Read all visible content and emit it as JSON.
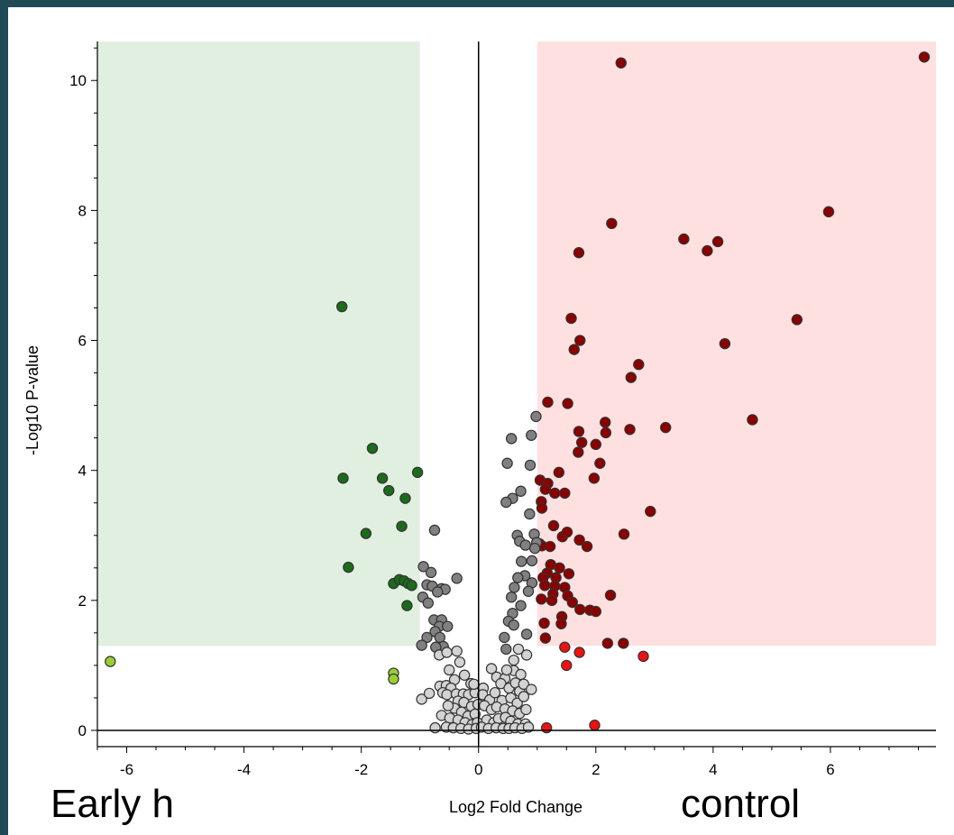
{
  "chart_data": {
    "type": "scatter",
    "title": "",
    "xlabel": "Log2 Fold Change",
    "ylabel": "-Log10 P-value",
    "xlim": [
      -6.5,
      7.8
    ],
    "ylim": [
      -0.25,
      10.6
    ],
    "x_ticks": [
      -6,
      -4,
      -2,
      0,
      2,
      4,
      6
    ],
    "y_ticks": [
      0,
      2,
      4,
      6,
      8,
      10
    ],
    "grid": false,
    "regions": [
      {
        "name": "down",
        "x": [
          -6.5,
          -1
        ],
        "y": [
          1.3,
          10.6
        ],
        "color": "#e1efe1"
      },
      {
        "name": "up",
        "x": [
          1,
          7.8
        ],
        "y": [
          1.3,
          10.6
        ],
        "color": "#ffe0e0"
      }
    ],
    "group_labels": {
      "left": "Early h",
      "right": "control"
    },
    "series": [
      {
        "color": "#1b6b1b",
        "points": [
          [
            -2.33,
            6.52
          ],
          [
            -1.81,
            4.34
          ],
          [
            -2.31,
            3.88
          ],
          [
            -1.64,
            3.88
          ],
          [
            -1.53,
            3.69
          ],
          [
            -1.25,
            3.57
          ],
          [
            -1.04,
            3.97
          ],
          [
            -1.31,
            3.14
          ],
          [
            -1.92,
            3.03
          ],
          [
            -2.22,
            2.51
          ],
          [
            -1.45,
            2.26
          ],
          [
            -1.35,
            2.32
          ],
          [
            -1.27,
            2.3
          ],
          [
            -1.2,
            2.26
          ],
          [
            -1.14,
            2.23
          ],
          [
            -1.22,
            1.92
          ]
        ]
      },
      {
        "color": "#9acd32",
        "points": [
          [
            -6.28,
            1.06
          ],
          [
            -1.45,
            0.88
          ],
          [
            -1.45,
            0.79
          ]
        ]
      },
      {
        "color": "#8b0000",
        "points": [
          [
            7.6,
            10.36
          ],
          [
            2.43,
            10.27
          ],
          [
            5.97,
            7.98
          ],
          [
            2.27,
            7.8
          ],
          [
            3.5,
            7.56
          ],
          [
            4.08,
            7.52
          ],
          [
            3.9,
            7.38
          ],
          [
            1.71,
            7.35
          ],
          [
            5.43,
            6.32
          ],
          [
            1.58,
            6.34
          ],
          [
            4.2,
            5.95
          ],
          [
            1.73,
            6.0
          ],
          [
            1.63,
            5.86
          ],
          [
            2.73,
            5.63
          ],
          [
            2.6,
            5.43
          ],
          [
            1.18,
            5.05
          ],
          [
            1.52,
            5.03
          ],
          [
            4.67,
            4.78
          ],
          [
            2.16,
            4.74
          ],
          [
            2.58,
            4.63
          ],
          [
            3.19,
            4.66
          ],
          [
            2.17,
            4.58
          ],
          [
            1.71,
            4.6
          ],
          [
            1.76,
            4.43
          ],
          [
            2.0,
            4.4
          ],
          [
            1.7,
            4.28
          ],
          [
            2.07,
            4.11
          ],
          [
            1.37,
            3.97
          ],
          [
            1.97,
            3.88
          ],
          [
            1.05,
            3.85
          ],
          [
            1.18,
            3.8
          ],
          [
            1.14,
            3.71
          ],
          [
            1.3,
            3.65
          ],
          [
            1.47,
            3.65
          ],
          [
            1.07,
            3.52
          ],
          [
            1.08,
            3.42
          ],
          [
            2.93,
            3.37
          ],
          [
            1.28,
            3.15
          ],
          [
            1.43,
            2.98
          ],
          [
            1.51,
            3.05
          ],
          [
            2.48,
            3.02
          ],
          [
            1.72,
            2.93
          ],
          [
            1.04,
            2.87
          ],
          [
            1.08,
            2.84
          ],
          [
            1.22,
            2.83
          ],
          [
            1.85,
            2.83
          ],
          [
            1.23,
            2.55
          ],
          [
            1.38,
            2.5
          ],
          [
            1.17,
            2.42
          ],
          [
            1.1,
            2.35
          ],
          [
            1.54,
            2.41
          ],
          [
            1.32,
            2.35
          ],
          [
            1.13,
            2.23
          ],
          [
            1.3,
            2.22
          ],
          [
            1.47,
            2.2
          ],
          [
            1.27,
            2.1
          ],
          [
            1.52,
            2.07
          ],
          [
            1.07,
            2.02
          ],
          [
            1.25,
            2.0
          ],
          [
            2.25,
            2.08
          ],
          [
            1.6,
            1.97
          ],
          [
            1.73,
            1.86
          ],
          [
            1.9,
            1.85
          ],
          [
            2.0,
            1.83
          ],
          [
            1.42,
            1.75
          ],
          [
            1.12,
            1.65
          ],
          [
            1.41,
            1.64
          ],
          [
            2.2,
            1.34
          ],
          [
            2.47,
            1.34
          ],
          [
            1.14,
            1.42
          ]
        ]
      },
      {
        "color": "#ee1111",
        "points": [
          [
            1.47,
            1.28
          ],
          [
            1.72,
            1.2
          ],
          [
            2.81,
            1.14
          ],
          [
            1.5,
            1.0
          ],
          [
            1.16,
            0.04
          ],
          [
            1.98,
            0.08
          ]
        ]
      },
      {
        "color": "#808080",
        "points": [
          [
            0.98,
            4.83
          ],
          [
            0.56,
            4.49
          ],
          [
            0.9,
            4.54
          ],
          [
            0.49,
            4.11
          ],
          [
            0.88,
            4.08
          ],
          [
            0.72,
            3.68
          ],
          [
            0.58,
            3.57
          ],
          [
            0.47,
            3.51
          ],
          [
            0.87,
            3.33
          ],
          [
            0.66,
            3.0
          ],
          [
            0.95,
            3.02
          ],
          [
            0.7,
            2.91
          ],
          [
            0.8,
            2.85
          ],
          [
            0.99,
            2.89
          ],
          [
            0.96,
            2.8
          ],
          [
            0.73,
            2.6
          ],
          [
            0.91,
            2.61
          ],
          [
            0.79,
            2.38
          ],
          [
            0.67,
            2.35
          ],
          [
            0.91,
            2.27
          ],
          [
            0.85,
            2.14
          ],
          [
            0.61,
            2.2
          ],
          [
            0.56,
            2.05
          ],
          [
            0.72,
            1.92
          ],
          [
            0.58,
            1.8
          ],
          [
            0.51,
            1.68
          ],
          [
            0.6,
            1.62
          ],
          [
            0.44,
            1.43
          ],
          [
            0.82,
            1.48
          ],
          [
            0.47,
            1.25
          ],
          [
            -0.75,
            3.08
          ],
          [
            -0.94,
            2.52
          ],
          [
            -0.81,
            2.43
          ],
          [
            -0.88,
            2.24
          ],
          [
            -0.79,
            2.22
          ],
          [
            -0.63,
            2.18
          ],
          [
            -0.57,
            2.17
          ],
          [
            -0.37,
            2.34
          ],
          [
            -0.7,
            2.13
          ],
          [
            -0.95,
            2.05
          ],
          [
            -0.86,
            1.96
          ],
          [
            -0.76,
            1.7
          ],
          [
            -0.63,
            1.7
          ],
          [
            -0.67,
            1.6
          ],
          [
            -0.53,
            1.6
          ],
          [
            -0.74,
            1.52
          ],
          [
            -0.88,
            1.43
          ],
          [
            -0.66,
            1.43
          ],
          [
            -0.6,
            1.29
          ],
          [
            -0.73,
            1.28
          ],
          [
            -0.97,
            1.31
          ]
        ]
      },
      {
        "color": "#d3d3d3",
        "points": [
          [
            -0.97,
            0.48
          ],
          [
            -0.84,
            0.57
          ],
          [
            -0.67,
            1.16
          ],
          [
            -0.54,
            1.2
          ],
          [
            -0.37,
            1.22
          ],
          [
            -0.32,
            1.05
          ],
          [
            -0.5,
            0.93
          ],
          [
            -0.24,
            0.85
          ],
          [
            -0.13,
            0.72
          ],
          [
            -0.41,
            0.78
          ],
          [
            -0.66,
            0.68
          ],
          [
            -0.55,
            0.69
          ],
          [
            -0.47,
            0.65
          ],
          [
            -0.61,
            0.58
          ],
          [
            -0.54,
            0.55
          ],
          [
            -0.38,
            0.56
          ],
          [
            -0.26,
            0.56
          ],
          [
            -0.17,
            0.55
          ],
          [
            -0.06,
            0.58
          ],
          [
            -0.35,
            0.45
          ],
          [
            -0.25,
            0.43
          ],
          [
            -0.12,
            0.37
          ],
          [
            -0.01,
            0.4
          ],
          [
            -0.41,
            0.34
          ],
          [
            -0.29,
            0.28
          ],
          [
            -0.18,
            0.22
          ],
          [
            -0.06,
            0.25
          ],
          [
            -0.63,
            0.23
          ],
          [
            -0.49,
            0.19
          ],
          [
            -0.35,
            0.16
          ],
          [
            -0.23,
            0.12
          ],
          [
            -0.11,
            0.09
          ],
          [
            -0.02,
            0.12
          ],
          [
            -0.74,
            0.04
          ],
          [
            -0.55,
            0.05
          ],
          [
            -0.43,
            0.04
          ],
          [
            -0.3,
            0.03
          ],
          [
            -0.17,
            0.02
          ],
          [
            -0.04,
            0.03
          ],
          [
            -0.08,
            0.71
          ],
          [
            -0.52,
            0.38
          ],
          [
            0.08,
            0.65
          ],
          [
            0.22,
            0.95
          ],
          [
            0.31,
            0.82
          ],
          [
            0.45,
            0.8
          ],
          [
            0.6,
            0.92
          ],
          [
            0.72,
            0.86
          ],
          [
            0.82,
            1.16
          ],
          [
            0.68,
            1.25
          ],
          [
            0.6,
            1.08
          ],
          [
            0.48,
            0.93
          ],
          [
            0.38,
            0.72
          ],
          [
            0.52,
            0.65
          ],
          [
            0.63,
            0.73
          ],
          [
            0.7,
            0.6
          ],
          [
            0.77,
            0.71
          ],
          [
            0.9,
            0.63
          ],
          [
            0.07,
            0.55
          ],
          [
            0.19,
            0.47
          ],
          [
            0.28,
            0.58
          ],
          [
            0.4,
            0.46
          ],
          [
            0.55,
            0.5
          ],
          [
            0.66,
            0.42
          ],
          [
            0.77,
            0.52
          ],
          [
            0.1,
            0.38
          ],
          [
            0.22,
            0.32
          ],
          [
            0.31,
            0.36
          ],
          [
            0.45,
            0.33
          ],
          [
            0.58,
            0.3
          ],
          [
            0.7,
            0.26
          ],
          [
            0.81,
            0.32
          ],
          [
            0.14,
            0.16
          ],
          [
            0.26,
            0.12
          ],
          [
            0.34,
            0.18
          ],
          [
            0.46,
            0.2
          ],
          [
            0.55,
            0.14
          ],
          [
            0.67,
            0.1
          ],
          [
            0.8,
            0.1
          ],
          [
            0.05,
            0.05
          ],
          [
            0.17,
            0.03
          ],
          [
            0.3,
            0.04
          ],
          [
            0.42,
            0.03
          ],
          [
            0.52,
            0.03
          ],
          [
            0.62,
            0.04
          ],
          [
            0.74,
            0.03
          ],
          [
            0.85,
            0.05
          ]
        ]
      }
    ]
  }
}
